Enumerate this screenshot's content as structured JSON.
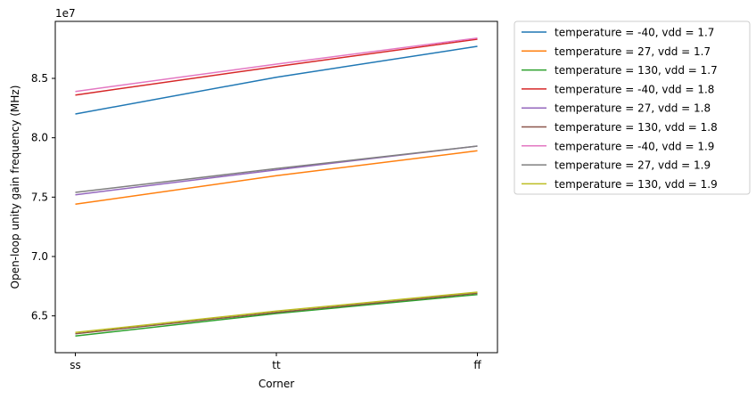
{
  "chart_data": {
    "type": "line",
    "title": "",
    "xlabel": "Corner",
    "ylabel": "Open-loop unity gain frequency (MHz)",
    "offset_text": "1e7",
    "categories": [
      "ss",
      "tt",
      "ff"
    ],
    "ylim": [
      61900000,
      89800000
    ],
    "yticks": [
      65000000,
      70000000,
      75000000,
      80000000,
      85000000
    ],
    "ytick_labels": [
      "6.5",
      "7.0",
      "7.5",
      "8.0",
      "8.5"
    ],
    "grid": false,
    "legend_position": "outside-right",
    "series": [
      {
        "name": "temperature = -40, vdd = 1.7",
        "color": "#1f77b4",
        "values": [
          82000000,
          85100000,
          87700000
        ]
      },
      {
        "name": "temperature = 27, vdd = 1.7",
        "color": "#ff7f0e",
        "values": [
          74400000,
          76800000,
          78900000
        ]
      },
      {
        "name": "temperature = 130, vdd = 1.7",
        "color": "#2ca02c",
        "values": [
          63300000,
          65200000,
          66800000
        ]
      },
      {
        "name": "temperature = -40, vdd = 1.8",
        "color": "#d62728",
        "values": [
          83600000,
          86000000,
          88300000
        ]
      },
      {
        "name": "temperature = 27, vdd = 1.8",
        "color": "#9467bd",
        "values": [
          75200000,
          77300000,
          79300000
        ]
      },
      {
        "name": "temperature = 130, vdd = 1.8",
        "color": "#8c564b",
        "values": [
          63500000,
          65300000,
          66900000
        ]
      },
      {
        "name": "temperature = -40, vdd = 1.9",
        "color": "#e377c2",
        "values": [
          83900000,
          86200000,
          88400000
        ]
      },
      {
        "name": "temperature = 27, vdd = 1.9",
        "color": "#7f7f7f",
        "values": [
          75400000,
          77400000,
          79300000
        ]
      },
      {
        "name": "temperature = 130, vdd = 1.9",
        "color": "#bcbd22",
        "values": [
          63600000,
          65400000,
          67000000
        ]
      }
    ]
  }
}
